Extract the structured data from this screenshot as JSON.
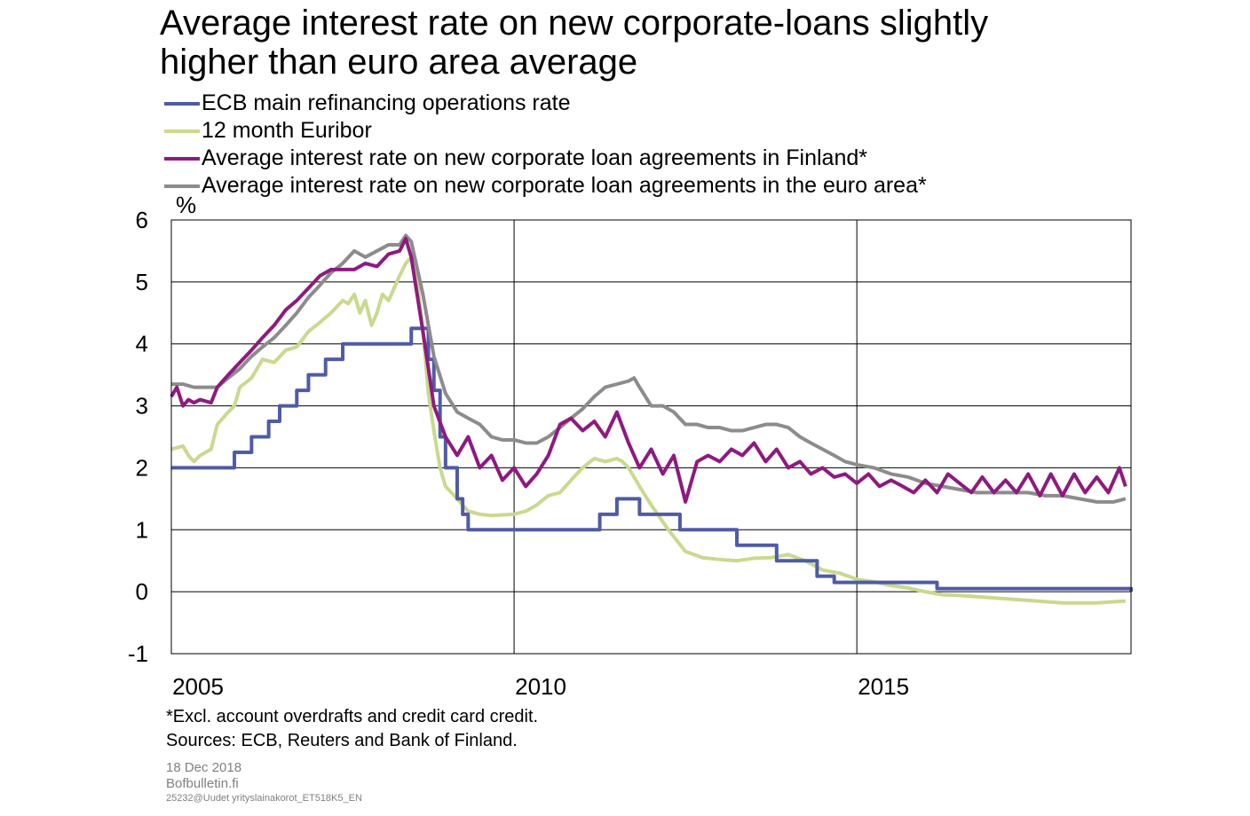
{
  "title_lines": [
    "Average interest rate on new corporate-loans slightly",
    "higher than euro area average"
  ],
  "unit": "%",
  "footnote": [
    "*Excl. account overdrafts and credit card credit.",
    "Sources: ECB, Reuters and Bank of Finland."
  ],
  "meta": {
    "date": "18 Dec 2018",
    "site": "Bofbulletin.fi",
    "code": "25232@Uudet yrityslainakorot_ET518K5_EN"
  },
  "chart_data": {
    "type": "line",
    "title": "Average interest rate on new corporate-loans slightly higher than euro area average",
    "ylabel": "%",
    "xlim": [
      2005.0,
      2019.0
    ],
    "ylim": [
      -1,
      6
    ],
    "yticks": [
      -1,
      0,
      1,
      2,
      3,
      4,
      5,
      6
    ],
    "xticks": [
      2005,
      2010,
      2015
    ],
    "grid": true,
    "legend_position": "top-left",
    "series": [
      {
        "name": "ECB main refinancing operations rate",
        "color": "#4F5BA5",
        "step": true,
        "x": [
          2005.0,
          2005.92,
          2006.17,
          2006.42,
          2006.58,
          2006.83,
          2007.0,
          2007.25,
          2007.5,
          2008.5,
          2008.75,
          2008.83,
          2008.92,
          2009.0,
          2009.17,
          2009.25,
          2009.33,
          2009.58,
          2011.25,
          2011.5,
          2011.83,
          2012.42,
          2013.25,
          2013.83,
          2014.42,
          2014.67,
          2016.17,
          2019.0
        ],
        "y": [
          2.0,
          2.25,
          2.5,
          2.75,
          3.0,
          3.25,
          3.5,
          3.75,
          4.0,
          4.25,
          3.75,
          3.25,
          2.5,
          2.0,
          1.5,
          1.25,
          1.0,
          1.0,
          1.25,
          1.5,
          1.25,
          1.0,
          0.75,
          0.5,
          0.25,
          0.15,
          0.05,
          0.0
        ]
      },
      {
        "name": "12 month Euribor",
        "color": "#C9D98E",
        "x": [
          2005.0,
          2005.17,
          2005.25,
          2005.33,
          2005.42,
          2005.5,
          2005.58,
          2005.67,
          2005.75,
          2005.83,
          2005.92,
          2006.0,
          2006.17,
          2006.33,
          2006.5,
          2006.67,
          2006.83,
          2007.0,
          2007.17,
          2007.33,
          2007.5,
          2007.58,
          2007.67,
          2007.75,
          2007.83,
          2007.92,
          2008.0,
          2008.08,
          2008.17,
          2008.25,
          2008.33,
          2008.42,
          2008.5,
          2008.58,
          2008.67,
          2008.75,
          2008.83,
          2008.92,
          2009.0,
          2009.17,
          2009.33,
          2009.5,
          2009.67,
          2009.83,
          2010.0,
          2010.17,
          2010.33,
          2010.5,
          2010.67,
          2010.83,
          2011.0,
          2011.17,
          2011.33,
          2011.5,
          2011.58,
          2011.67,
          2011.83,
          2012.0,
          2012.25,
          2012.5,
          2012.75,
          2013.0,
          2013.25,
          2013.5,
          2013.75,
          2014.0,
          2014.25,
          2014.5,
          2014.75,
          2015.0,
          2015.25,
          2015.5,
          2015.75,
          2016.0,
          2016.25,
          2016.5,
          2016.75,
          2017.0,
          2017.5,
          2018.0,
          2018.5,
          2018.92
        ],
        "y": [
          2.3,
          2.35,
          2.2,
          2.1,
          2.2,
          2.25,
          2.3,
          2.7,
          2.8,
          2.9,
          3.0,
          3.3,
          3.45,
          3.75,
          3.7,
          3.9,
          3.95,
          4.2,
          4.35,
          4.5,
          4.7,
          4.65,
          4.8,
          4.5,
          4.7,
          4.3,
          4.5,
          4.8,
          4.7,
          4.9,
          5.1,
          5.3,
          5.4,
          5.1,
          4.2,
          3.2,
          2.6,
          2.0,
          1.7,
          1.5,
          1.3,
          1.25,
          1.23,
          1.24,
          1.25,
          1.3,
          1.4,
          1.55,
          1.6,
          1.8,
          2.0,
          2.15,
          2.1,
          2.15,
          2.1,
          2.0,
          1.7,
          1.4,
          1.0,
          0.65,
          0.55,
          0.52,
          0.5,
          0.54,
          0.55,
          0.6,
          0.5,
          0.35,
          0.3,
          0.2,
          0.16,
          0.1,
          0.06,
          0.0,
          -0.05,
          -0.06,
          -0.08,
          -0.1,
          -0.14,
          -0.18,
          -0.18,
          -0.15
        ]
      },
      {
        "name": "Average interest rate on new corporate loan agreements in Finland*",
        "color": "#8E1A7F",
        "x": [
          2005.0,
          2005.08,
          2005.17,
          2005.25,
          2005.33,
          2005.42,
          2005.58,
          2005.67,
          2005.83,
          2006.0,
          2006.17,
          2006.33,
          2006.5,
          2006.67,
          2006.83,
          2007.0,
          2007.17,
          2007.33,
          2007.5,
          2007.67,
          2007.83,
          2008.0,
          2008.17,
          2008.33,
          2008.42,
          2008.5,
          2008.67,
          2008.83,
          2009.0,
          2009.17,
          2009.33,
          2009.5,
          2009.67,
          2009.83,
          2010.0,
          2010.17,
          2010.33,
          2010.5,
          2010.67,
          2010.83,
          2011.0,
          2011.17,
          2011.33,
          2011.5,
          2011.67,
          2011.83,
          2012.0,
          2012.17,
          2012.33,
          2012.5,
          2012.67,
          2012.83,
          2013.0,
          2013.17,
          2013.33,
          2013.5,
          2013.67,
          2013.83,
          2014.0,
          2014.17,
          2014.33,
          2014.5,
          2014.67,
          2014.83,
          2015.0,
          2015.17,
          2015.33,
          2015.5,
          2015.67,
          2015.83,
          2016.0,
          2016.17,
          2016.33,
          2016.5,
          2016.67,
          2016.83,
          2017.0,
          2017.17,
          2017.33,
          2017.5,
          2017.67,
          2017.83,
          2018.0,
          2018.17,
          2018.33,
          2018.5,
          2018.67,
          2018.83,
          2018.92
        ],
        "y": [
          3.15,
          3.3,
          3.0,
          3.1,
          3.05,
          3.1,
          3.05,
          3.3,
          3.5,
          3.7,
          3.9,
          4.1,
          4.3,
          4.55,
          4.7,
          4.9,
          5.1,
          5.2,
          5.2,
          5.2,
          5.3,
          5.25,
          5.45,
          5.5,
          5.7,
          5.4,
          4.2,
          3.0,
          2.5,
          2.2,
          2.5,
          2.0,
          2.2,
          1.8,
          2.0,
          1.7,
          1.9,
          2.2,
          2.7,
          2.8,
          2.6,
          2.75,
          2.5,
          2.9,
          2.4,
          2.0,
          2.3,
          1.9,
          2.2,
          1.45,
          2.1,
          2.2,
          2.1,
          2.3,
          2.2,
          2.4,
          2.1,
          2.3,
          2.0,
          2.1,
          1.9,
          2.0,
          1.85,
          1.9,
          1.75,
          1.9,
          1.7,
          1.8,
          1.7,
          1.6,
          1.8,
          1.6,
          1.9,
          1.75,
          1.6,
          1.85,
          1.6,
          1.8,
          1.6,
          1.9,
          1.55,
          1.9,
          1.55,
          1.9,
          1.6,
          1.85,
          1.6,
          2.0,
          1.7
        ]
      },
      {
        "name": "Average interest rate on new corporate loan agreements in the euro area*",
        "color": "#8C8C8C",
        "x": [
          2005.0,
          2005.17,
          2005.33,
          2005.5,
          2005.67,
          2005.83,
          2006.0,
          2006.17,
          2006.33,
          2006.5,
          2006.67,
          2006.83,
          2007.0,
          2007.17,
          2007.33,
          2007.5,
          2007.67,
          2007.83,
          2008.0,
          2008.17,
          2008.33,
          2008.42,
          2008.5,
          2008.67,
          2008.83,
          2009.0,
          2009.17,
          2009.33,
          2009.5,
          2009.67,
          2009.83,
          2010.0,
          2010.17,
          2010.33,
          2010.5,
          2010.67,
          2010.83,
          2011.0,
          2011.17,
          2011.33,
          2011.5,
          2011.67,
          2011.75,
          2011.83,
          2012.0,
          2012.17,
          2012.33,
          2012.5,
          2012.67,
          2012.83,
          2013.0,
          2013.17,
          2013.33,
          2013.5,
          2013.67,
          2013.83,
          2014.0,
          2014.17,
          2014.33,
          2014.5,
          2014.67,
          2014.83,
          2015.0,
          2015.25,
          2015.5,
          2015.75,
          2016.0,
          2016.25,
          2016.5,
          2016.75,
          2017.0,
          2017.25,
          2017.5,
          2017.75,
          2018.0,
          2018.25,
          2018.5,
          2018.75,
          2018.92
        ],
        "y": [
          3.35,
          3.35,
          3.3,
          3.3,
          3.3,
          3.45,
          3.6,
          3.8,
          3.95,
          4.1,
          4.3,
          4.5,
          4.75,
          4.95,
          5.15,
          5.3,
          5.5,
          5.4,
          5.5,
          5.6,
          5.6,
          5.75,
          5.65,
          4.8,
          3.8,
          3.2,
          2.9,
          2.8,
          2.7,
          2.5,
          2.45,
          2.45,
          2.4,
          2.4,
          2.5,
          2.65,
          2.8,
          2.95,
          3.15,
          3.3,
          3.35,
          3.4,
          3.45,
          3.3,
          3.0,
          3.0,
          2.9,
          2.7,
          2.7,
          2.65,
          2.65,
          2.6,
          2.6,
          2.65,
          2.7,
          2.7,
          2.65,
          2.5,
          2.4,
          2.3,
          2.2,
          2.1,
          2.05,
          2.0,
          1.9,
          1.85,
          1.75,
          1.7,
          1.65,
          1.6,
          1.6,
          1.6,
          1.6,
          1.55,
          1.55,
          1.5,
          1.45,
          1.45,
          1.5
        ]
      }
    ]
  }
}
